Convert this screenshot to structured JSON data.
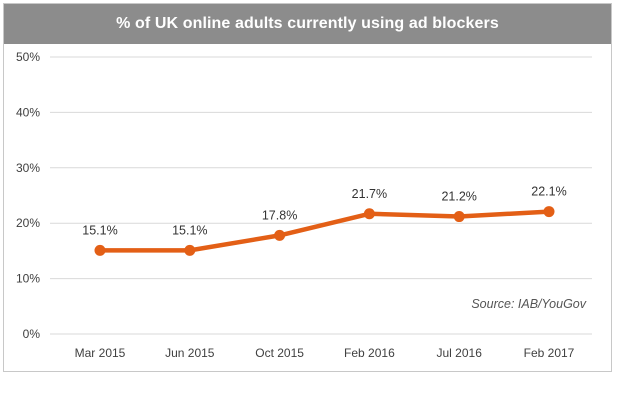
{
  "chart_data": {
    "type": "line",
    "title": "% of UK online adults currently using ad blockers",
    "categories": [
      "Mar 2015",
      "Jun 2015",
      "Oct 2015",
      "Feb 2016",
      "Jul 2016",
      "Feb 2017"
    ],
    "values": [
      15.1,
      15.1,
      17.8,
      21.7,
      21.2,
      22.1
    ],
    "data_labels": [
      "15.1%",
      "15.1%",
      "17.8%",
      "21.7%",
      "21.2%",
      "22.1%"
    ],
    "y_ticks": [
      0,
      10,
      20,
      30,
      40,
      50
    ],
    "y_tick_labels": [
      "0%",
      "10%",
      "20%",
      "30%",
      "40%",
      "50%"
    ],
    "ylim": [
      0,
      50
    ],
    "grid": true,
    "legend": "none",
    "source": "Source: IAB/YouGov",
    "colors": {
      "line": "#e35f16",
      "title_bar": "#8c8c8c",
      "grid": "#d9d9d9"
    }
  }
}
